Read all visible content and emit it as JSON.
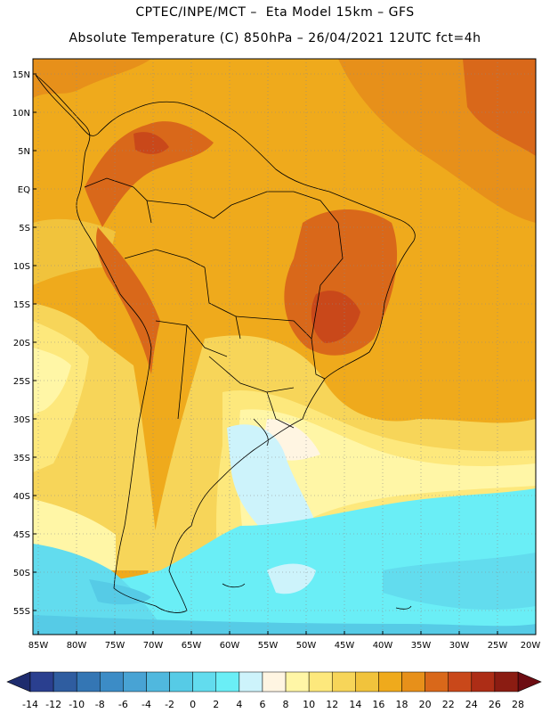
{
  "header": {
    "line1": "CPTEC/INPE/MCT –  Eta Model 15km – GFS",
    "line2": "Absolute Temperature (C) 850hPa – 26/04/2021 12UTC fct=4h"
  },
  "axes": {
    "lat_labels": [
      "15N",
      "10N",
      "5N",
      "EQ",
      "5S",
      "10S",
      "15S",
      "20S",
      "25S",
      "30S",
      "35S",
      "40S",
      "45S",
      "50S",
      "55S"
    ],
    "lon_labels": [
      "85W",
      "80W",
      "75W",
      "70W",
      "65W",
      "60W",
      "55W",
      "50W",
      "45W",
      "40W",
      "35W",
      "30W",
      "25W",
      "20W"
    ]
  },
  "colorbar": {
    "labels": [
      "-14",
      "-12",
      "-10",
      "-8",
      "-6",
      "-4",
      "-2",
      "0",
      "2",
      "4",
      "6",
      "8",
      "10",
      "12",
      "14",
      "16",
      "18",
      "20",
      "22",
      "24",
      "26",
      "28"
    ],
    "colors": [
      "#2a3f8f",
      "#2f5da0",
      "#3476b4",
      "#3c8cc6",
      "#48a3d4",
      "#50b8de",
      "#56cbe6",
      "#62dcee",
      "#6aeef6",
      "#cdf3fb",
      "#fff5e2",
      "#fff6a6",
      "#fde87c",
      "#f7d559",
      "#f1c33c",
      "#efaa1c",
      "#e7901a",
      "#d9681a",
      "#c9481a",
      "#ad2d16",
      "#8b1c12"
    ],
    "low_color": "#1e2c6e",
    "high_color": "#6d0c12"
  }
}
